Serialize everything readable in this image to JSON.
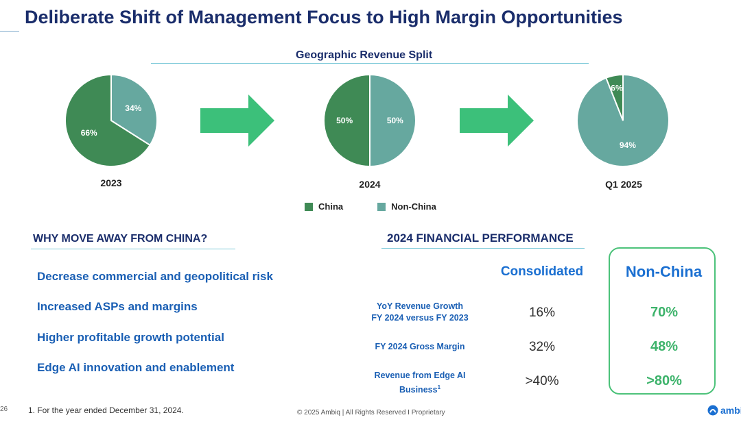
{
  "title": "Deliberate Shift of Management Focus to High Margin Opportunities",
  "revenue_split": {
    "heading": "Geographic Revenue Split",
    "pies": [
      {
        "year": "2023",
        "china_label": "66%",
        "non_china_label": "34%"
      },
      {
        "year": "2024",
        "china_label": "50%",
        "non_china_label": "50%"
      },
      {
        "year": "Q1 2025",
        "china_label": "6%",
        "non_china_label": "94%"
      }
    ],
    "legend": {
      "china": "China",
      "non_china": "Non-China"
    },
    "colors": {
      "china": "#3f8a55",
      "non_china": "#66a89f",
      "arrow": "#3cc07a"
    }
  },
  "chart_data": {
    "type": "pie",
    "title": "Geographic Revenue Split",
    "series_names": [
      "China",
      "Non-China"
    ],
    "charts": [
      {
        "category": "2023",
        "values": [
          66,
          34
        ]
      },
      {
        "category": "2024",
        "values": [
          50,
          50
        ]
      },
      {
        "category": "Q1 2025",
        "values": [
          6,
          94
        ]
      }
    ]
  },
  "why": {
    "heading": "WHY MOVE AWAY FROM CHINA?",
    "reasons": [
      "Decrease commercial and geopolitical risk",
      "Increased ASPs and margins",
      "Higher profitable growth potential",
      "Edge AI innovation and enablement"
    ]
  },
  "financial": {
    "heading": "2024 FINANCIAL PERFORMANCE",
    "col_consolidated": "Consolidated",
    "col_non_china": "Non-China",
    "rows": [
      {
        "label_line1": "YoY Revenue Growth",
        "label_line2": "FY 2024 versus FY 2023",
        "consolidated": "16%",
        "non_china": "70%"
      },
      {
        "label_line1": "FY 2024 Gross Margin",
        "label_line2": "",
        "consolidated": "32%",
        "non_china": "48%"
      },
      {
        "label_line1": "Revenue from Edge AI",
        "label_line2": "Business",
        "sup": "1",
        "consolidated": ">40%",
        "non_china": ">80%"
      }
    ]
  },
  "footer": {
    "page_number": "26",
    "footnote": "1. For the year ended December 31, 2024.",
    "copyright": "© 2025 Ambiq  |  All Rights Reserved I Proprietary",
    "logo_text": "ambiq"
  }
}
